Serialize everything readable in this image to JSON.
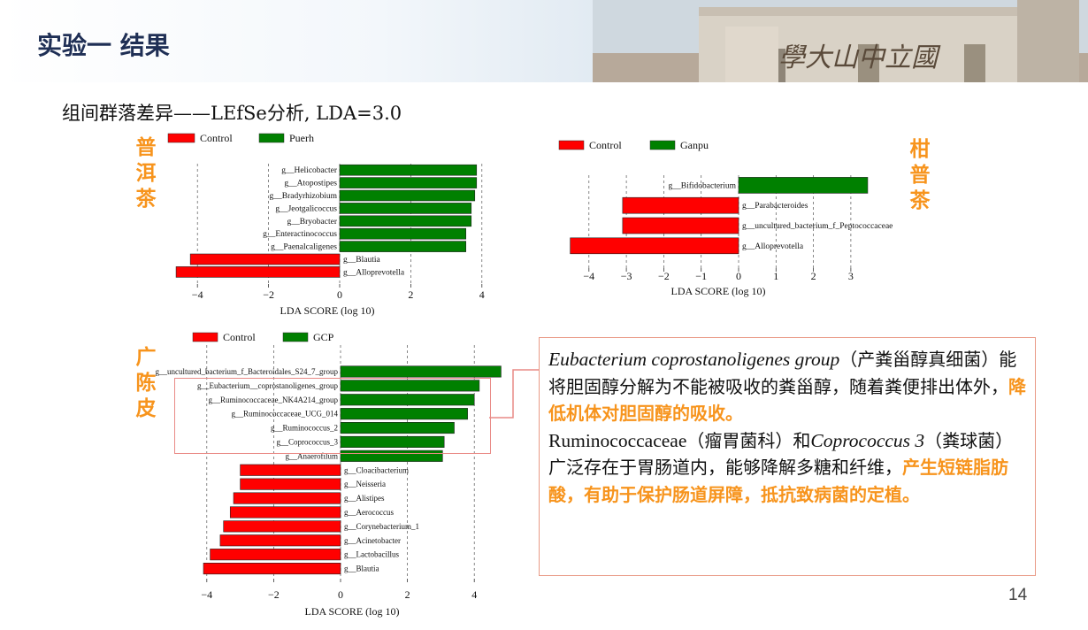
{
  "slide": {
    "title": "实验一 结果",
    "subtitle": "组间群落差异——LEfSe分析, LDA=3.0",
    "banner_text": "學大山中立國",
    "page_number": "14"
  },
  "side_labels": {
    "puerh": "普洱茶",
    "ganpu": "柑普茶",
    "gcp": "广陈皮"
  },
  "callout": {
    "p1_genus": "Eubacterium coprostanoligenes group",
    "p1_cn1": "（产粪甾醇真细菌）能将胆固醇分解为不能被吸收的粪甾醇，随着粪便排出体外，",
    "p1_hl": "降低机体对胆固醇的吸收。",
    "p2_a": "Ruminococcaceae",
    "p2_cn1": "（瘤胃菌科）和",
    "p2_genus": "Coprococcus 3",
    "p2_cn2": "（粪球菌）广泛存在于胃肠道内，能够降解多糖和纤维，",
    "p2_hl": "产生短链脂肪酸，有助于保护肠道屏障，抵抗致病菌的定植。"
  },
  "colors": {
    "control": "#ff0000",
    "treatment": "#008000",
    "highlight": "#f7941d",
    "title": "#1f2f55"
  },
  "chart_data": [
    {
      "type": "bar",
      "legend": [
        "Control",
        "Puerh"
      ],
      "xlabel": "LDA SCORE (log 10)",
      "xticks": [
        -4,
        -2,
        0,
        2,
        4
      ],
      "categories": [
        "g__Helicobacter",
        "g__Atopostipes",
        "g__Bradyrhizobium",
        "g__Jeotgalicoccus",
        "g__Bryobacter",
        "g__Enteractinococcus",
        "g__Paenalcaligenes",
        "g__Blautia",
        "g__Alloprevotella"
      ],
      "values": [
        3.85,
        3.85,
        3.8,
        3.7,
        3.7,
        3.55,
        3.55,
        -4.2,
        -4.6
      ],
      "groups": [
        "Puerh",
        "Puerh",
        "Puerh",
        "Puerh",
        "Puerh",
        "Puerh",
        "Puerh",
        "Control",
        "Control"
      ],
      "xlim": [
        -4.6,
        4.2
      ]
    },
    {
      "type": "bar",
      "legend": [
        "Control",
        "Ganpu"
      ],
      "xlabel": "LDA SCORE (log 10)",
      "xticks": [
        -4,
        -3,
        -2,
        -1,
        0,
        1,
        2,
        3
      ],
      "categories": [
        "g__Bifidobacterium",
        "g__Parabacteroides",
        "g__uncultured_bacterium_f_Peptococcaceae",
        "g__Alloprevotella"
      ],
      "values": [
        3.45,
        -3.1,
        -3.1,
        -4.5
      ],
      "groups": [
        "Ganpu",
        "Control",
        "Control",
        "Control"
      ],
      "xlim": [
        -4.6,
        3.5
      ]
    },
    {
      "type": "bar",
      "legend": [
        "Control",
        "GCP"
      ],
      "xlabel": "LDA SCORE (log 10)",
      "xticks": [
        -4,
        -2,
        0,
        2,
        4
      ],
      "categories": [
        "g__uncultured_bacterium_f_Bacteroidales_S24_7_group",
        "g__Eubacterium__coprostanoligenes_group",
        "g__Ruminococcaceae_NK4A214_group",
        "g__Ruminococcaceae_UCG_014",
        "g__Ruminococcus_2",
        "g__Coprococcus_3",
        "g__Anaerofilum",
        "g__Cloacibacterium",
        "g__Neisseria",
        "g__Alistipes",
        "g__Aerococcus",
        "g__Corynebacterium_1",
        "g__Acinetobacter",
        "g__Lactobacillus",
        "g__Blautia"
      ],
      "values": [
        4.8,
        4.15,
        4.0,
        3.8,
        3.4,
        3.1,
        3.05,
        -3.0,
        -3.0,
        -3.2,
        -3.3,
        -3.5,
        -3.6,
        -3.9,
        -4.1
      ],
      "groups": [
        "GCP",
        "GCP",
        "GCP",
        "GCP",
        "GCP",
        "GCP",
        "GCP",
        "Control",
        "Control",
        "Control",
        "Control",
        "Control",
        "Control",
        "Control",
        "Control"
      ],
      "xlim": [
        -4.3,
        4.9
      ]
    }
  ]
}
